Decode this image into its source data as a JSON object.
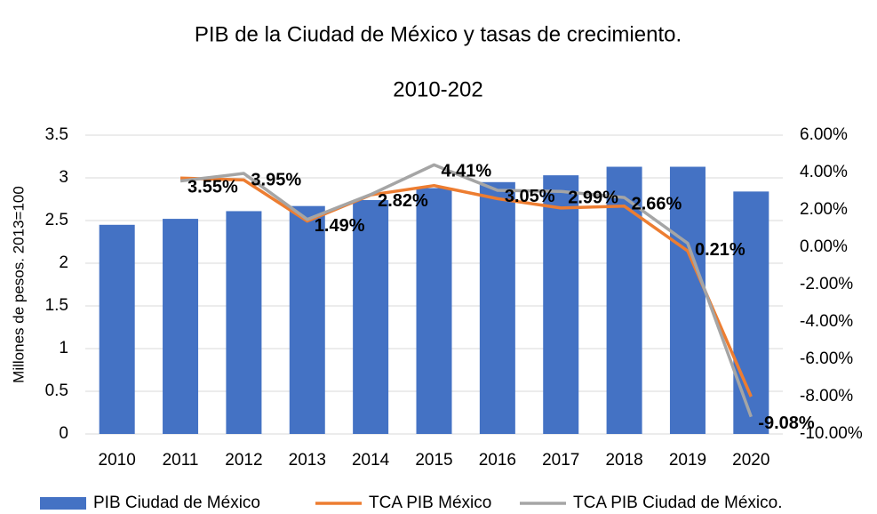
{
  "chart_data": {
    "type": "bar-line",
    "title": "PIB de la Ciudad de México y tasas de crecimiento.",
    "subtitle": "2010-202",
    "y_label": "Millones de pesos. 2013=100",
    "categories": [
      "2010",
      "2011",
      "2012",
      "2013",
      "2014",
      "2015",
      "2016",
      "2017",
      "2018",
      "2019",
      "2020"
    ],
    "series": [
      {
        "name": "PIB Ciudad de México",
        "type": "bar",
        "color": "#4472c4",
        "values": [
          2.45,
          2.52,
          2.61,
          2.67,
          2.74,
          2.88,
          2.95,
          3.03,
          3.13,
          3.13,
          2.84
        ]
      },
      {
        "name": "TCA PIB México",
        "type": "line",
        "axis": "y2",
        "color": "#ed7d31",
        "values": [
          null,
          3.7,
          3.6,
          1.4,
          2.8,
          3.3,
          2.6,
          2.1,
          2.2,
          -0.2,
          -8.0
        ]
      },
      {
        "name": "TCA PIB Ciudad de México.",
        "type": "line",
        "axis": "y2",
        "color": "#a5a5a5",
        "values": [
          null,
          3.55,
          3.95,
          1.49,
          2.82,
          4.41,
          3.05,
          2.99,
          2.66,
          0.21,
          -9.08
        ],
        "value_labels": [
          null,
          "3.55%",
          "3.95%",
          "1.49%",
          "2.82%",
          "4.41%",
          "3.05%",
          "2.99%",
          "2.66%",
          "0.21%",
          "-9.08%"
        ]
      }
    ],
    "ylim": [
      0,
      3.5
    ],
    "yticks": [
      0,
      0.5,
      1,
      1.5,
      2,
      2.5,
      3,
      3.5
    ],
    "y2lim": [
      -10,
      6
    ],
    "y2ticks": [
      {
        "value": -10,
        "label": "-10.00%"
      },
      {
        "value": -8,
        "label": "-8.00%"
      },
      {
        "value": -6,
        "label": "-6.00%"
      },
      {
        "value": -4,
        "label": "-4.00%"
      },
      {
        "value": -2,
        "label": "-2.00%"
      },
      {
        "value": 0,
        "label": "0.00%"
      },
      {
        "value": 2,
        "label": "2.00%"
      },
      {
        "value": 4,
        "label": "4.00%"
      },
      {
        "value": 6,
        "label": "6.00%"
      }
    ],
    "grid": true,
    "legend": "bottom"
  }
}
